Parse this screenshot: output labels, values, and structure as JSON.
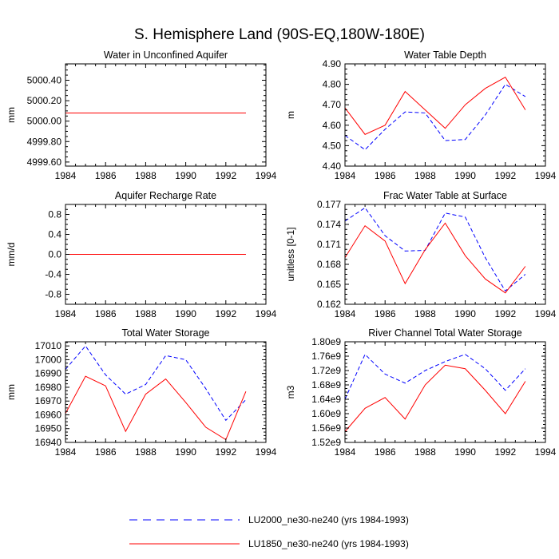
{
  "title": "S. Hemisphere Land (90S-EQ,180W-180E)",
  "legend": [
    {
      "label": "LU2000_ne30-ne240 (yrs 1984-1993)",
      "color": "#0000ff",
      "dash": "dashed"
    },
    {
      "label": "LU1850_ne30-ne240 (yrs 1984-1993)",
      "color": "#ff0000",
      "dash": "solid"
    }
  ],
  "chart_data": [
    {
      "type": "line",
      "title": "Water in Unconfined Aquifer",
      "ylabel": "mm",
      "xlim": [
        1984,
        1994
      ],
      "xticks": [
        1984,
        1986,
        1988,
        1990,
        1992,
        1994
      ],
      "ylim": [
        4999.56,
        5000.56
      ],
      "yticks": [
        "4999.60",
        "4999.80",
        "5000.00",
        "5000.20",
        "5000.40"
      ],
      "x": [
        1984,
        1985,
        1986,
        1987,
        1988,
        1989,
        1990,
        1991,
        1992,
        1993
      ],
      "series": [
        {
          "name": "LU2000_ne30-ne240 (yrs 1984-1993)",
          "values": [
            5000.08,
            5000.08,
            5000.08,
            5000.08,
            5000.08,
            5000.08,
            5000.08,
            5000.08,
            5000.08,
            5000.08
          ]
        },
        {
          "name": "LU1850_ne30-ne240 (yrs 1984-1993)",
          "values": [
            5000.08,
            5000.08,
            5000.08,
            5000.08,
            5000.08,
            5000.08,
            5000.08,
            5000.08,
            5000.08,
            5000.08
          ]
        }
      ]
    },
    {
      "type": "line",
      "title": "Water Table Depth",
      "ylabel": "m",
      "xlim": [
        1984,
        1994
      ],
      "xticks": [
        1984,
        1986,
        1988,
        1990,
        1992,
        1994
      ],
      "ylim": [
        4.4,
        4.9
      ],
      "yticks": [
        "4.40",
        "4.50",
        "4.60",
        "4.70",
        "4.80",
        "4.90"
      ],
      "x": [
        1984,
        1985,
        1986,
        1987,
        1988,
        1989,
        1990,
        1991,
        1992,
        1993
      ],
      "series": [
        {
          "name": "LU2000_ne30-ne240 (yrs 1984-1993)",
          "values": [
            4.55,
            4.48,
            4.58,
            4.665,
            4.66,
            4.525,
            4.53,
            4.65,
            4.8,
            4.74
          ]
        },
        {
          "name": "LU1850_ne30-ne240 (yrs 1984-1993)",
          "values": [
            4.685,
            4.555,
            4.6,
            4.765,
            4.675,
            4.585,
            4.7,
            4.78,
            4.835,
            4.675
          ]
        }
      ]
    },
    {
      "type": "line",
      "title": "Aquifer Recharge Rate",
      "ylabel": "mm/d",
      "xlim": [
        1984,
        1994
      ],
      "xticks": [
        1984,
        1986,
        1988,
        1990,
        1992,
        1994
      ],
      "ylim": [
        -1.0,
        1.0
      ],
      "yticks": [
        "-0.8",
        "-0.4",
        "0.0",
        "0.4",
        "0.8"
      ],
      "x": [
        1984,
        1985,
        1986,
        1987,
        1988,
        1989,
        1990,
        1991,
        1992,
        1993
      ],
      "series": [
        {
          "name": "LU2000_ne30-ne240 (yrs 1984-1993)",
          "values": [
            0,
            0,
            0,
            0,
            0,
            0,
            0,
            0,
            0,
            0
          ]
        },
        {
          "name": "LU1850_ne30-ne240 (yrs 1984-1993)",
          "values": [
            0,
            0,
            0,
            0,
            0,
            0,
            0,
            0,
            0,
            0
          ]
        }
      ]
    },
    {
      "type": "line",
      "title": "Frac Water Table at Surface",
      "ylabel": "unitless [0-1]",
      "xlim": [
        1984,
        1994
      ],
      "xticks": [
        1984,
        1986,
        1988,
        1990,
        1992,
        1994
      ],
      "ylim": [
        0.162,
        0.177
      ],
      "yticks": [
        "0.162",
        "0.165",
        "0.168",
        "0.171",
        "0.174",
        "0.177"
      ],
      "x": [
        1984,
        1985,
        1986,
        1987,
        1988,
        1989,
        1990,
        1991,
        1992,
        1993
      ],
      "series": [
        {
          "name": "LU2000_ne30-ne240 (yrs 1984-1993)",
          "values": [
            0.1745,
            0.1765,
            0.1723,
            0.17,
            0.1701,
            0.1757,
            0.1751,
            0.169,
            0.164,
            0.1665
          ]
        },
        {
          "name": "LU1850_ne30-ne240 (yrs 1984-1993)",
          "values": [
            0.169,
            0.1738,
            0.1715,
            0.1651,
            0.1702,
            0.1742,
            0.1693,
            0.1658,
            0.1637,
            0.1677
          ]
        }
      ]
    },
    {
      "type": "line",
      "title": "Total Water Storage",
      "ylabel": "mm",
      "xlim": [
        1984,
        1994
      ],
      "xticks": [
        1984,
        1986,
        1988,
        1990,
        1992,
        1994
      ],
      "ylim": [
        16940,
        17013
      ],
      "yticks": [
        "16940",
        "16950",
        "16960",
        "16970",
        "16980",
        "16990",
        "17000",
        "17010"
      ],
      "x": [
        1984,
        1985,
        1986,
        1987,
        1988,
        1989,
        1990,
        1991,
        1992,
        1993
      ],
      "series": [
        {
          "name": "LU2000_ne30-ne240 (yrs 1984-1993)",
          "values": [
            16993,
            17010,
            16989,
            16975,
            16982,
            17003,
            17000,
            16979,
            16956,
            16971
          ]
        },
        {
          "name": "LU1850_ne30-ne240 (yrs 1984-1993)",
          "values": [
            16961,
            16988,
            16981,
            16948,
            16975,
            16986,
            16969,
            16951,
            16942,
            16977
          ]
        }
      ]
    },
    {
      "type": "line",
      "title": "River Channel Total Water Storage",
      "ylabel": "m3",
      "xlim": [
        1984,
        1994
      ],
      "xticks": [
        1984,
        1986,
        1988,
        1990,
        1992,
        1994
      ],
      "ylim": [
        1520000000.0,
        1800000000.0
      ],
      "yticks": [
        "1.52e9",
        "1.56e9",
        "1.60e9",
        "1.64e9",
        "1.68e9",
        "1.72e9",
        "1.76e9",
        "1.80e9"
      ],
      "x": [
        1984,
        1985,
        1986,
        1987,
        1988,
        1989,
        1990,
        1991,
        1992,
        1993
      ],
      "series": [
        {
          "name": "LU2000_ne30-ne240 (yrs 1984-1993)",
          "values": [
            1640000000.0,
            1765000000.0,
            1710000000.0,
            1685000000.0,
            1720000000.0,
            1745000000.0,
            1765000000.0,
            1725000000.0,
            1665000000.0,
            1725000000.0
          ]
        },
        {
          "name": "LU1850_ne30-ne240 (yrs 1984-1993)",
          "values": [
            1550000000.0,
            1615000000.0,
            1645000000.0,
            1585000000.0,
            1680000000.0,
            1735000000.0,
            1725000000.0,
            1665000000.0,
            1600000000.0,
            1690000000.0
          ]
        }
      ]
    }
  ]
}
